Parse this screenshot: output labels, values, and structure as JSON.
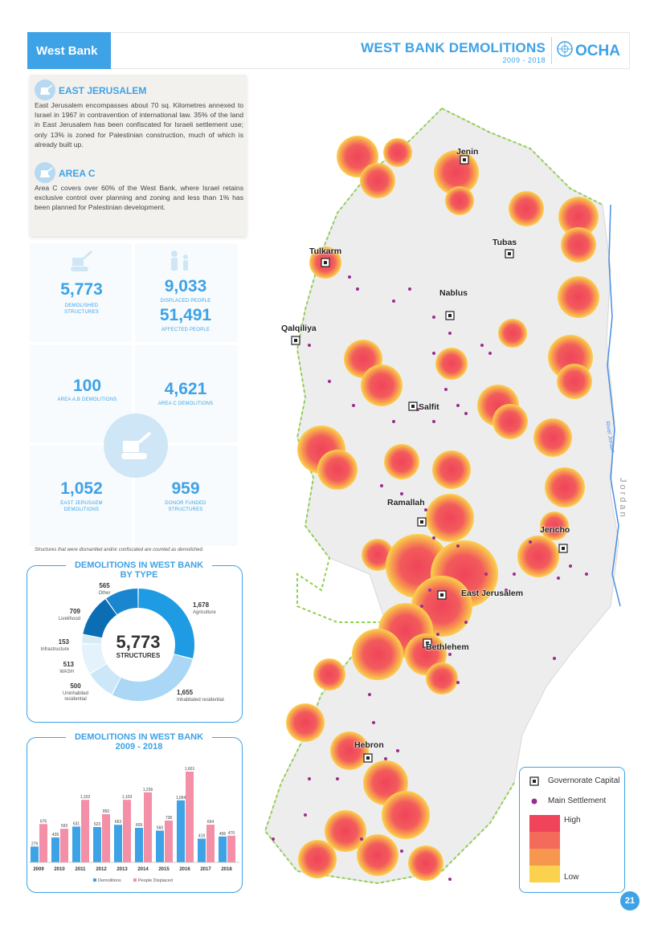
{
  "header": {
    "section_tag": "West Bank",
    "title": "WEST BANK DEMOLITIONS",
    "subtitle": "2009 - 2018",
    "org": "OCHA"
  },
  "info": {
    "ej_title": "EAST JERUSALEM",
    "ej_text": "East Jerusalem encompasses about 70 sq. Kilometres annexed to Israel in 1967 in contravention of international law. 35% of the land in East Jerusalem has been confiscated for Israeli settlement use; only 13%  is zoned for Palestinian construction, much of which is already built up.",
    "ac_title": "AREA C",
    "ac_text": "Area C covers over 60% of the West Bank, where Israel retains exclusive control over planning and zoning and less than 1% has been planned for Palestinian development."
  },
  "stats": {
    "demolished_value": "5,773",
    "demolished_label_1": "DEMOLISHED",
    "demolished_label_2": "STRUCTURES",
    "displaced_value": "9,033",
    "displaced_label": "DISPLACED PEOPLE",
    "affected_value": "51,491",
    "affected_label": "AFFECTED PEOPLE",
    "areaab_value": "100",
    "areaab_label": "AREA A,B DEMOLITIONS",
    "areac_value": "4,621",
    "areac_label": "AREA C DEMOLITIONS",
    "ej_value": "1,052",
    "ej_label_1": "EAST JERUSAEM",
    "ej_label_2": "DEMOLITIONS",
    "donor_value": "959",
    "donor_label_1": "DONOR FUNDED",
    "donor_label_2": "STRUCTURES",
    "note": "Structures that were dismantled and/or confiscated are counted as demolished."
  },
  "donut": {
    "box_title_1": "DEMOLITIONS IN WEST BANK",
    "box_title_2": "BY TYPE",
    "center_value": "5,773",
    "center_label": "STRUCTURES",
    "colors": [
      "#1f9be3",
      "#a9d7f5",
      "#cce7f8",
      "#e4f2fb",
      "#d8ecf8",
      "#0b6eb5",
      "#1a86d0"
    ]
  },
  "bars_box": {
    "title_1": "DEMOLITIONS IN WEST BANK",
    "title_2": "2009 - 2018",
    "colors": {
      "demolitions": "#3ea2e6",
      "displaced": "#f48fa8"
    }
  },
  "chart_data": [
    {
      "type": "pie",
      "title": "DEMOLITIONS IN WEST BANK BY TYPE",
      "categories": [
        "Agriculture",
        "Inhabitated residential",
        "Uninhabited residential",
        "WASH",
        "Infrastructure",
        "Livelihood",
        "Other"
      ],
      "values": [
        1678,
        1655,
        500,
        513,
        153,
        709,
        565
      ],
      "labels": [
        "1,678",
        "1,655",
        "500",
        "513",
        "153",
        "709",
        "565"
      ],
      "center_total": 5773
    },
    {
      "type": "bar",
      "title": "DEMOLITIONS IN WEST BANK 2009 - 2018",
      "categories": [
        "2009",
        "2010",
        "2011",
        "2012",
        "2013",
        "2014",
        "2015",
        "2016",
        "2017",
        "2018"
      ],
      "series": [
        {
          "name": "Demolitions",
          "values": [
            279,
            439,
            631,
            623,
            663,
            609,
            560,
            1094,
            419,
            456
          ]
        },
        {
          "name": "People Displaced",
          "values": [
            676,
            593,
            1102,
            850,
            1103,
            1236,
            738,
            1601,
            664,
            470
          ]
        }
      ],
      "ylim": [
        0,
        1700
      ],
      "legend": "bottom"
    }
  ],
  "map": {
    "cities": [
      {
        "name": "Jenin"
      },
      {
        "name": "Tubas"
      },
      {
        "name": "Tulkarm"
      },
      {
        "name": "Nablus"
      },
      {
        "name": "Qalqiliya"
      },
      {
        "name": "Salfit"
      },
      {
        "name": "Ramallah"
      },
      {
        "name": "Jericho"
      },
      {
        "name": "East Jerusalem"
      },
      {
        "name": "Bethlehem"
      },
      {
        "name": "Hebron"
      }
    ],
    "river_label": "River Jordan",
    "country_label": "Jordan",
    "legend": {
      "capital": "Governorate Capital",
      "settlement": "Main Settlement",
      "high": "High",
      "low": "Low"
    }
  },
  "page_number": "21"
}
